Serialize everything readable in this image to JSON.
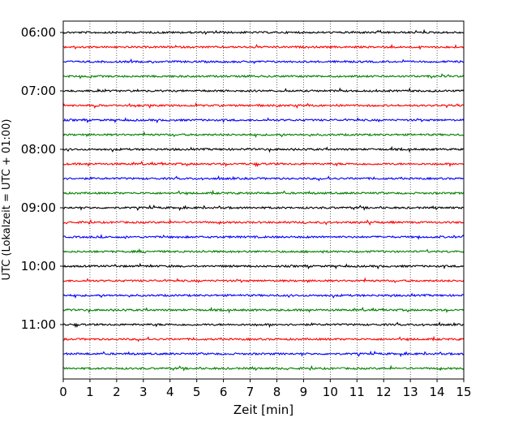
{
  "chart_data": {
    "type": "line",
    "xlabel": "Zeit  [min]",
    "ylabel": "UTC (Lokalzeit = UTC + 01:00)",
    "xlim": [
      0,
      15
    ],
    "x_ticks": [
      "0",
      "1",
      "2",
      "3",
      "4",
      "5",
      "6",
      "7",
      "8",
      "9",
      "10",
      "11",
      "12",
      "13",
      "14",
      "15"
    ],
    "y_ticks": [
      "06:00",
      "07:00",
      "08:00",
      "09:00",
      "10:00",
      "11:00"
    ],
    "grid": "vertical-dotted",
    "traces": {
      "start": "06:00",
      "interval_minutes": 15,
      "count": 24,
      "color_cycle": [
        "#000000",
        "#ff0000",
        "#0000ff",
        "#008000"
      ]
    }
  }
}
